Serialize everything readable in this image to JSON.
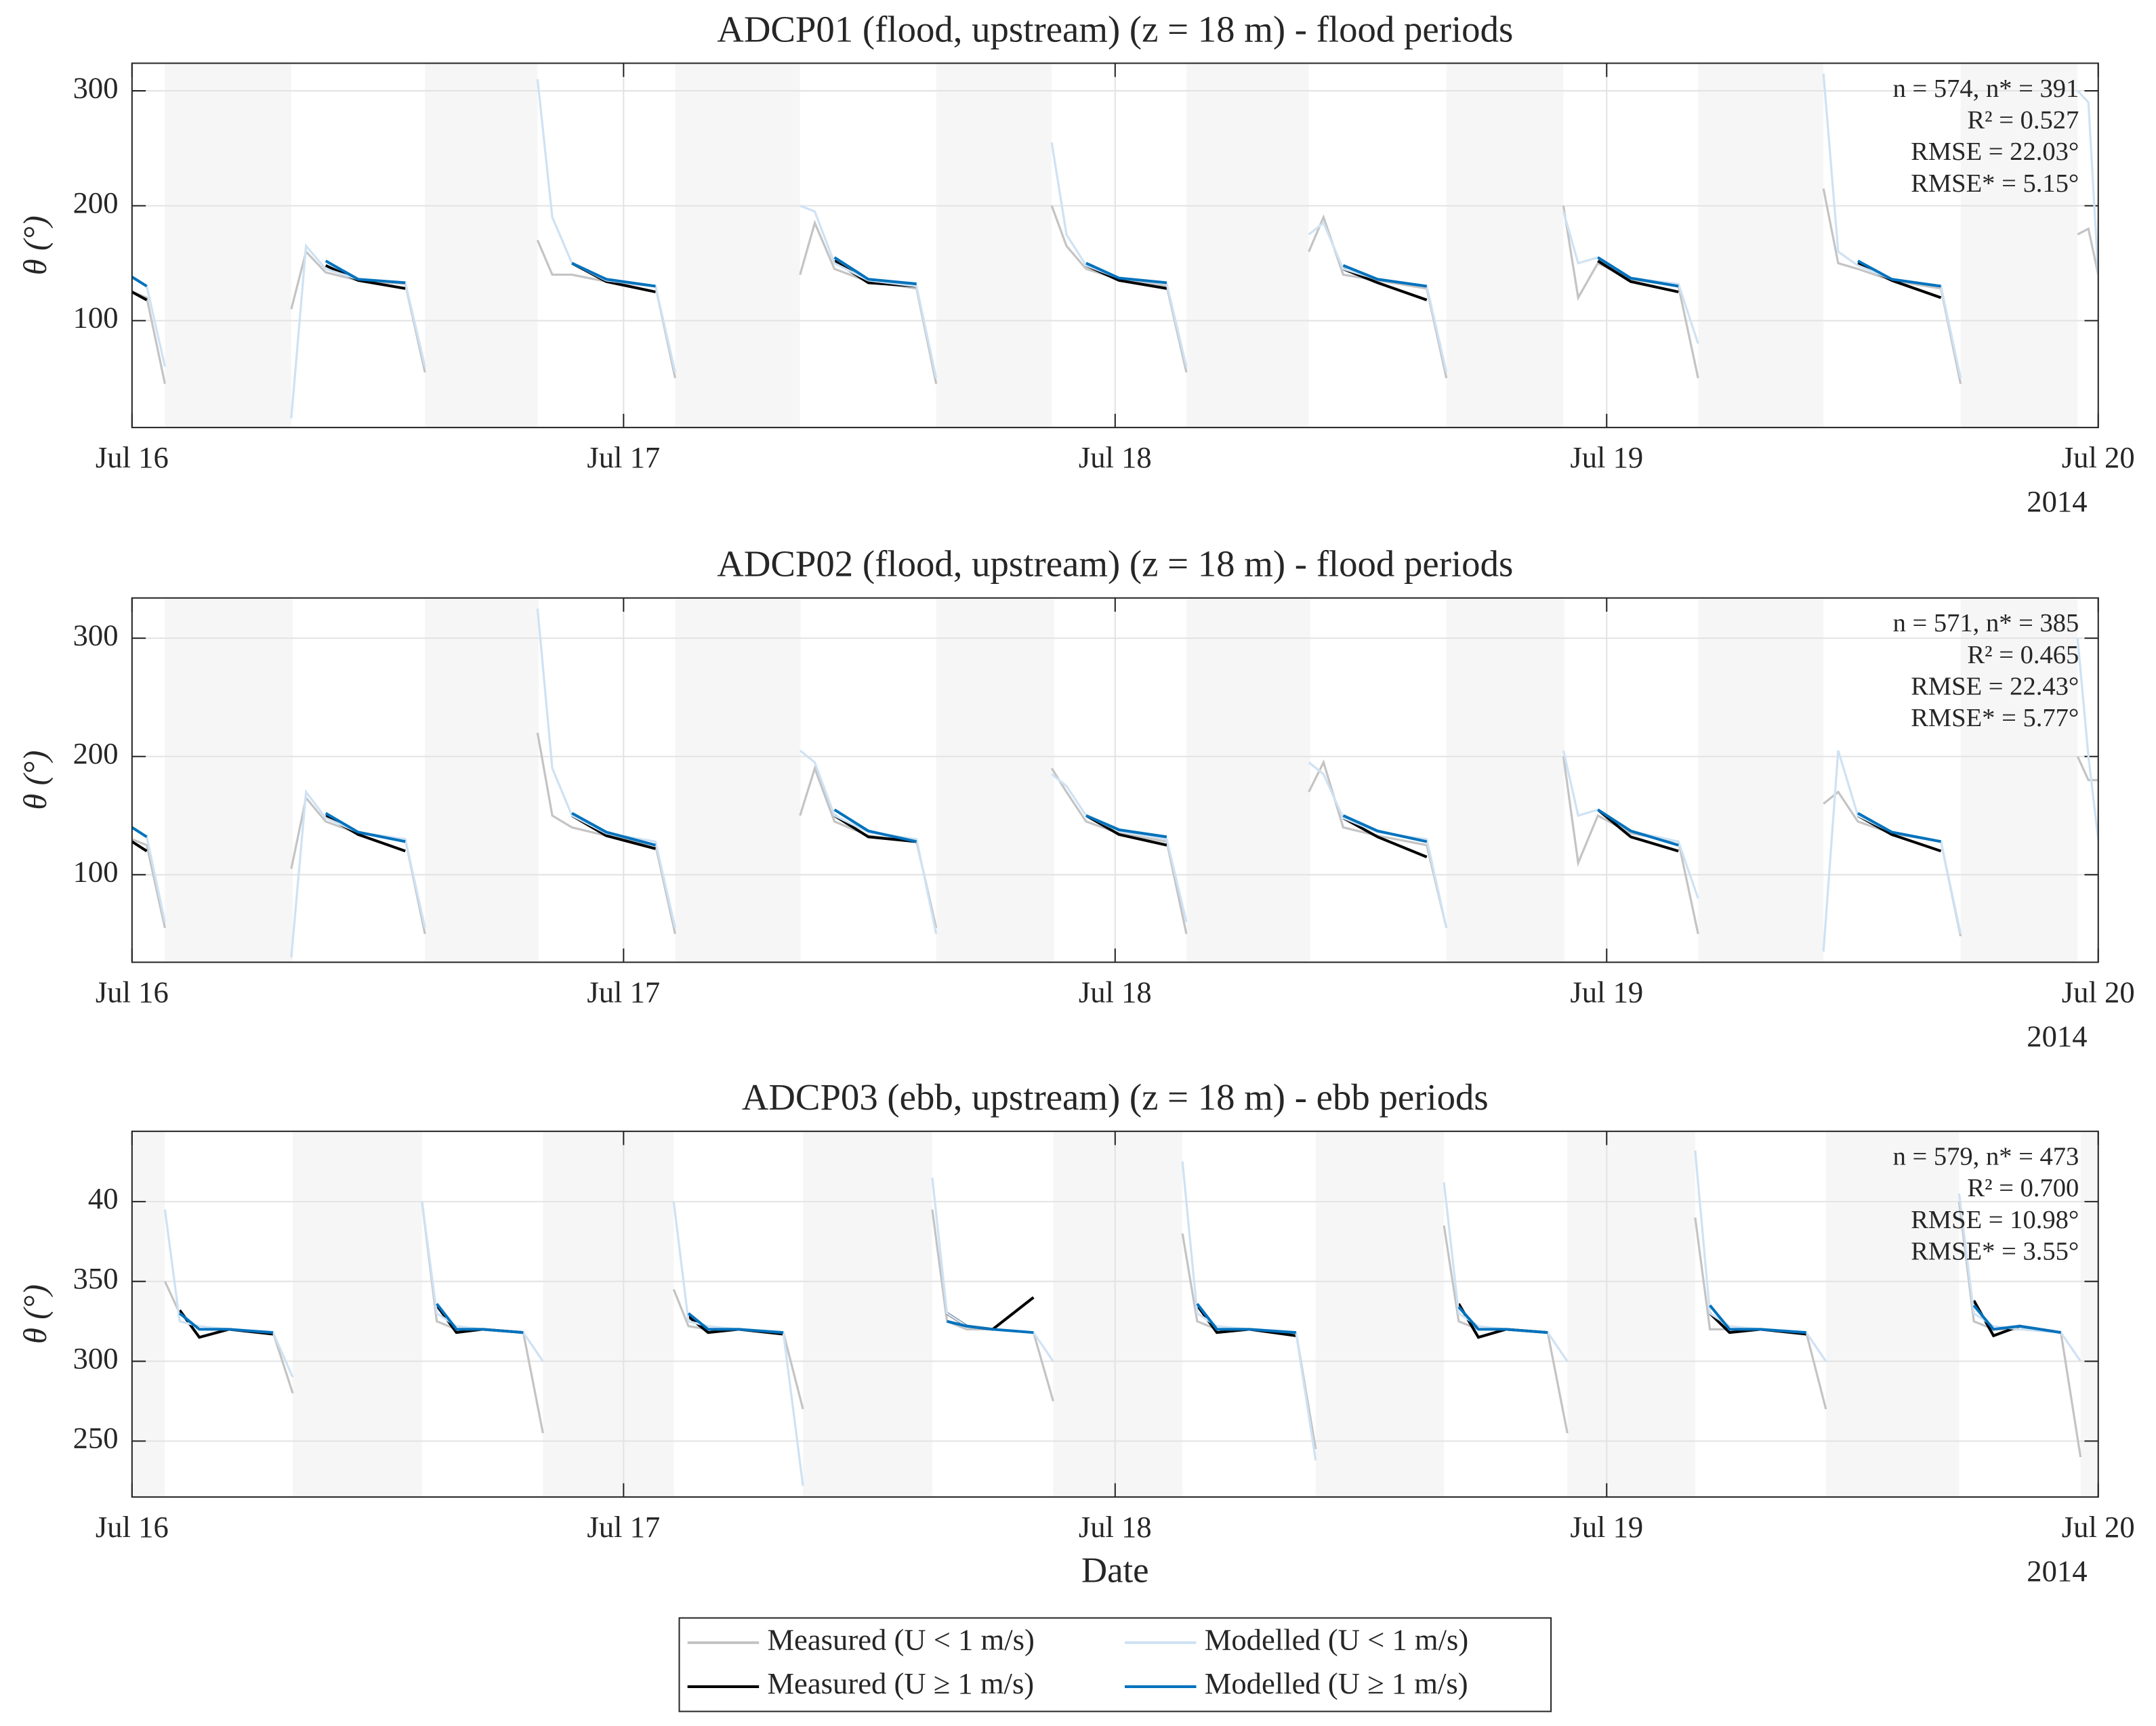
{
  "chart_data": [
    {
      "type": "line",
      "title": "ADCP01 (flood, upstream) (z = 18 m) - flood periods",
      "ylabel": "θ (°)",
      "year_label": "2014",
      "stats": [
        "n = 574, n* = 391",
        "R² = 0.527",
        "RMSE = 22.03°",
        "RMSE* = 5.15°"
      ],
      "xlim": [
        0,
        4
      ],
      "xticks": [
        {
          "value": 0,
          "label": "Jul 16"
        },
        {
          "value": 1,
          "label": "Jul 17"
        },
        {
          "value": 2,
          "label": "Jul 18"
        },
        {
          "value": 3,
          "label": "Jul 19"
        },
        {
          "value": 4,
          "label": "Jul 20"
        }
      ],
      "ylim": [
        7,
        324
      ],
      "yticks": [
        100,
        200,
        300
      ],
      "grid": true,
      "shaded_periods": [
        [
          0.067,
          0.324
        ],
        [
          0.596,
          0.825
        ],
        [
          1.105,
          1.359
        ],
        [
          1.636,
          1.871
        ],
        [
          2.145,
          2.394
        ],
        [
          2.674,
          2.912
        ],
        [
          3.186,
          3.441
        ],
        [
          3.72,
          3.958
        ]
      ],
      "x": [
        0,
        0.03,
        0.067,
        0.2,
        0.324,
        0.354,
        0.394,
        0.46,
        0.556,
        0.596,
        0.71,
        0.825,
        0.855,
        0.895,
        0.965,
        1.065,
        1.105,
        1.23,
        1.359,
        1.389,
        1.429,
        1.498,
        1.596,
        1.636,
        1.75,
        1.871,
        1.901,
        1.941,
        2.008,
        2.105,
        2.145,
        2.27,
        2.394,
        2.424,
        2.464,
        2.534,
        2.634,
        2.674,
        2.79,
        2.912,
        2.942,
        2.982,
        3.049,
        3.146,
        3.186,
        3.31,
        3.441,
        3.471,
        3.511,
        3.58,
        3.68,
        3.72,
        3.84,
        3.958,
        3.98,
        4.0
      ],
      "series": [
        {
          "name": "Measured (U < 1 m/s)",
          "color": "#c4c4c4",
          "values": [
            125,
            120,
            45,
            null,
            110,
            160,
            142,
            135,
            132,
            55,
            null,
            170,
            140,
            140,
            134,
            130,
            50,
            null,
            140,
            185,
            145,
            134,
            128,
            45,
            null,
            200,
            165,
            145,
            136,
            130,
            55,
            null,
            160,
            190,
            140,
            135,
            128,
            50,
            null,
            200,
            120,
            150,
            136,
            130,
            50,
            null,
            215,
            150,
            145,
            135,
            128,
            45,
            null,
            175,
            180,
            140
          ]
        },
        {
          "name": "Measured (U ≥ 1 m/s)",
          "color": "#000000",
          "values": [
            125,
            118,
            null,
            null,
            null,
            null,
            148,
            135,
            128,
            null,
            null,
            null,
            null,
            150,
            134,
            125,
            null,
            null,
            null,
            null,
            152,
            133,
            130,
            null,
            null,
            null,
            null,
            148,
            135,
            128,
            null,
            null,
            null,
            null,
            145,
            133,
            118,
            null,
            null,
            null,
            null,
            152,
            134,
            125,
            null,
            null,
            null,
            null,
            150,
            135,
            120,
            null,
            null,
            null,
            null,
            null
          ]
        },
        {
          "name": "Modelled (U < 1 m/s)",
          "color": "#cfe2f3",
          "values": [
            138,
            130,
            60,
            null,
            15,
            165,
            145,
            136,
            133,
            60,
            null,
            310,
            190,
            150,
            135,
            130,
            55,
            null,
            200,
            195,
            150,
            135,
            130,
            50,
            null,
            255,
            175,
            148,
            137,
            132,
            60,
            null,
            175,
            185,
            145,
            136,
            130,
            55,
            null,
            195,
            150,
            155,
            137,
            132,
            80,
            null,
            315,
            160,
            148,
            136,
            130,
            50,
            null,
            300,
            290,
            140
          ]
        },
        {
          "name": "Modelled (U ≥ 1 m/s)",
          "color": "#0072bd",
          "values": [
            138,
            130,
            null,
            null,
            null,
            null,
            152,
            136,
            133,
            null,
            null,
            null,
            null,
            150,
            136,
            130,
            null,
            null,
            null,
            null,
            155,
            136,
            132,
            null,
            null,
            null,
            null,
            150,
            137,
            133,
            null,
            null,
            null,
            null,
            148,
            136,
            130,
            null,
            null,
            null,
            null,
            155,
            137,
            130,
            null,
            null,
            null,
            null,
            152,
            136,
            130,
            null,
            null,
            null,
            null,
            null
          ]
        }
      ]
    },
    {
      "type": "line",
      "title": "ADCP02 (flood, upstream) (z = 18 m) - flood periods",
      "ylabel": "θ (°)",
      "year_label": "2014",
      "stats": [
        "n = 571, n* = 385",
        "R² = 0.465",
        "RMSE = 22.43°",
        "RMSE* = 5.77°"
      ],
      "xlim": [
        0,
        4
      ],
      "xticks": [
        {
          "value": 0,
          "label": "Jul 16"
        },
        {
          "value": 1,
          "label": "Jul 17"
        },
        {
          "value": 2,
          "label": "Jul 18"
        },
        {
          "value": 3,
          "label": "Jul 19"
        },
        {
          "value": 4,
          "label": "Jul 20"
        }
      ],
      "ylim": [
        26,
        334
      ],
      "yticks": [
        100,
        200,
        300
      ],
      "grid": true,
      "shaded_periods": [
        [
          0.067,
          0.327
        ],
        [
          0.596,
          0.827
        ],
        [
          1.105,
          1.36
        ],
        [
          1.636,
          1.876
        ],
        [
          2.145,
          2.397
        ],
        [
          2.674,
          2.914
        ],
        [
          3.186,
          3.441
        ],
        [
          3.72,
          3.958
        ]
      ],
      "x": [
        0,
        0.03,
        0.067,
        0.2,
        0.324,
        0.354,
        0.394,
        0.46,
        0.556,
        0.596,
        0.71,
        0.825,
        0.855,
        0.895,
        0.965,
        1.065,
        1.105,
        1.23,
        1.359,
        1.389,
        1.429,
        1.498,
        1.596,
        1.636,
        1.75,
        1.871,
        1.901,
        1.941,
        2.008,
        2.105,
        2.145,
        2.27,
        2.394,
        2.424,
        2.464,
        2.534,
        2.634,
        2.674,
        2.79,
        2.912,
        2.942,
        2.982,
        3.049,
        3.146,
        3.186,
        3.31,
        3.441,
        3.471,
        3.511,
        3.58,
        3.68,
        3.72,
        3.84,
        3.958,
        3.98,
        4.0
      ],
      "series": [
        {
          "color": "#c4c4c4",
          "values": [
            130,
            125,
            55,
            null,
            105,
            165,
            145,
            135,
            130,
            50,
            null,
            220,
            150,
            140,
            133,
            125,
            50,
            null,
            150,
            190,
            145,
            133,
            128,
            55,
            null,
            190,
            170,
            145,
            135,
            128,
            50,
            null,
            170,
            195,
            140,
            133,
            125,
            55,
            null,
            200,
            110,
            150,
            135,
            128,
            50,
            null,
            160,
            170,
            145,
            135,
            128,
            48,
            null,
            200,
            180,
            180
          ]
        },
        {
          "color": "#000000",
          "values": [
            128,
            120,
            null,
            null,
            null,
            null,
            150,
            134,
            120,
            null,
            null,
            null,
            null,
            150,
            133,
            122,
            null,
            null,
            null,
            null,
            150,
            132,
            128,
            null,
            null,
            null,
            null,
            150,
            134,
            125,
            null,
            null,
            null,
            null,
            148,
            132,
            115,
            null,
            null,
            null,
            null,
            155,
            132,
            120,
            null,
            null,
            null,
            null,
            150,
            134,
            120,
            null,
            null,
            null,
            null,
            null
          ]
        },
        {
          "color": "#cfe2f3",
          "values": [
            140,
            132,
            60,
            null,
            30,
            170,
            148,
            136,
            130,
            55,
            null,
            325,
            190,
            150,
            135,
            128,
            55,
            null,
            205,
            195,
            150,
            136,
            130,
            50,
            null,
            185,
            175,
            150,
            137,
            130,
            60,
            null,
            195,
            185,
            148,
            136,
            130,
            55,
            null,
            205,
            150,
            155,
            137,
            128,
            80,
            null,
            35,
            205,
            150,
            136,
            128,
            50,
            null,
            300,
            200,
            130
          ]
        },
        {
          "color": "#0072bd",
          "values": [
            140,
            132,
            null,
            null,
            null,
            null,
            152,
            136,
            128,
            null,
            null,
            null,
            null,
            152,
            136,
            125,
            null,
            null,
            null,
            null,
            155,
            137,
            128,
            null,
            null,
            null,
            null,
            150,
            138,
            132,
            null,
            null,
            null,
            null,
            150,
            137,
            128,
            null,
            null,
            null,
            null,
            155,
            137,
            125,
            null,
            null,
            null,
            null,
            152,
            136,
            128,
            null,
            null,
            null,
            null,
            null
          ]
        }
      ]
    },
    {
      "type": "line",
      "title": "ADCP03 (ebb, upstream) (z = 18 m) - ebb periods",
      "ylabel": "θ (°)",
      "year_label": "2014",
      "xlabel": "Date",
      "stats": [
        "n = 579, n* = 473",
        "R² = 0.700",
        "RMSE = 10.98°",
        "RMSE* = 3.55°"
      ],
      "xlim": [
        0,
        4
      ],
      "xticks": [
        {
          "value": 0,
          "label": "Jul 16"
        },
        {
          "value": 1,
          "label": "Jul 17"
        },
        {
          "value": 2,
          "label": "Jul 18"
        },
        {
          "value": 3,
          "label": "Jul 19"
        },
        {
          "value": 4,
          "label": "Jul 20"
        }
      ],
      "ylim": [
        215,
        444
      ],
      "yticks": [
        250,
        300,
        350,
        {
          "value": 400,
          "label": "40"
        }
      ],
      "grid": true,
      "shaded_periods": [
        [
          0,
          0.067
        ],
        [
          0.327,
          0.59
        ],
        [
          0.836,
          1.102
        ],
        [
          1.365,
          1.628
        ],
        [
          1.874,
          2.137
        ],
        [
          2.408,
          2.669
        ],
        [
          2.92,
          3.18
        ],
        [
          3.446,
          3.717
        ],
        [
          3.964,
          4
        ]
      ],
      "x": [
        0.067,
        0.097,
        0.137,
        0.197,
        0.287,
        0.327,
        0.46,
        0.59,
        0.62,
        0.66,
        0.713,
        0.796,
        0.836,
        0.97,
        1.102,
        1.132,
        1.172,
        1.234,
        1.325,
        1.365,
        1.5,
        1.628,
        1.658,
        1.698,
        1.751,
        1.834,
        1.874,
        2.0,
        2.137,
        2.167,
        2.207,
        2.273,
        2.368,
        2.408,
        2.54,
        2.669,
        2.699,
        2.739,
        2.795,
        2.88,
        2.92,
        3.05,
        3.18,
        3.21,
        3.25,
        3.313,
        3.406,
        3.446,
        3.58,
        3.717,
        3.747,
        3.787,
        3.84,
        3.924,
        3.964
      ],
      "series": [
        {
          "color": "#c4c4c4",
          "values": [
            350,
            330,
            320,
            320,
            318,
            280,
            null,
            400,
            325,
            320,
            320,
            318,
            255,
            null,
            345,
            322,
            320,
            320,
            318,
            270,
            null,
            395,
            325,
            320,
            320,
            318,
            275,
            null,
            380,
            325,
            320,
            320,
            318,
            245,
            null,
            385,
            325,
            320,
            320,
            318,
            255,
            null,
            390,
            320,
            320,
            320,
            318,
            270,
            null,
            400,
            325,
            320,
            320,
            318,
            240
          ]
        },
        {
          "color": "#000000",
          "values": [
            null,
            332,
            315,
            320,
            317,
            null,
            null,
            null,
            335,
            318,
            320,
            318,
            null,
            null,
            null,
            328,
            318,
            320,
            317,
            null,
            null,
            null,
            330,
            322,
            320,
            340,
            null,
            null,
            null,
            335,
            318,
            320,
            316,
            null,
            null,
            null,
            336,
            315,
            320,
            318,
            null,
            null,
            null,
            330,
            318,
            320,
            317,
            null,
            null,
            null,
            338,
            316,
            322,
            318,
            null
          ]
        },
        {
          "color": "#cfe2f3",
          "values": [
            395,
            325,
            322,
            320,
            318,
            290,
            null,
            400,
            330,
            322,
            320,
            318,
            300,
            null,
            400,
            325,
            322,
            320,
            318,
            222,
            null,
            415,
            330,
            322,
            320,
            318,
            300,
            null,
            425,
            330,
            322,
            320,
            318,
            238,
            null,
            412,
            330,
            322,
            320,
            318,
            300,
            null,
            432,
            330,
            322,
            320,
            318,
            300,
            null,
            405,
            330,
            322,
            320,
            318,
            300
          ]
        },
        {
          "color": "#0072bd",
          "values": [
            null,
            330,
            320,
            320,
            318,
            null,
            null,
            null,
            336,
            320,
            320,
            318,
            null,
            null,
            null,
            330,
            320,
            320,
            318,
            null,
            null,
            null,
            325,
            322,
            320,
            318,
            null,
            null,
            null,
            336,
            320,
            320,
            318,
            null,
            null,
            null,
            334,
            320,
            320,
            318,
            null,
            null,
            null,
            335,
            320,
            320,
            318,
            null,
            null,
            null,
            335,
            320,
            322,
            318,
            null
          ]
        }
      ]
    }
  ]
}
